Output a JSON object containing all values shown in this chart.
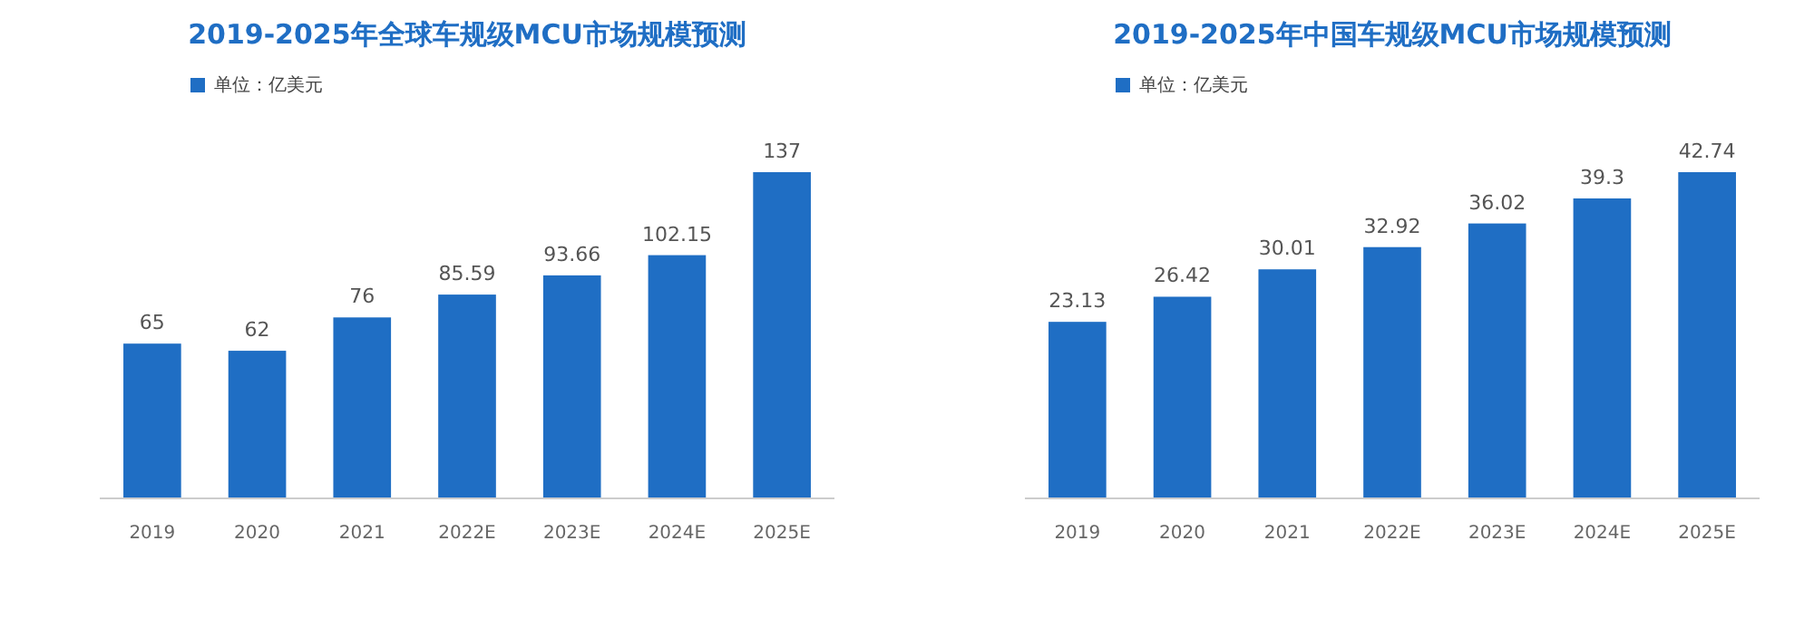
{
  "chart_data": [
    {
      "type": "bar",
      "title": "2019-2025年全球车规级MCU市场规模预测",
      "categories": [
        "2019",
        "2020",
        "2021",
        "2022E",
        "2023E",
        "2024E",
        "2025E"
      ],
      "series": [
        {
          "name": "单位：亿美元",
          "color": "#1f6ec4",
          "values": [
            65,
            62,
            76,
            85.59,
            93.66,
            102.15,
            137
          ]
        }
      ],
      "data_labels": true,
      "legend": "top left"
    },
    {
      "type": "bar",
      "title": "2019-2025年中国车规级MCU市场规模预测",
      "categories": [
        "2019",
        "2020",
        "2021",
        "2022E",
        "2023E",
        "2024E",
        "2025E"
      ],
      "series": [
        {
          "name": "单位：亿美元",
          "color": "#1f6ec4",
          "values": [
            23.13,
            26.42,
            30.01,
            32.92,
            36.02,
            39.3,
            42.74
          ]
        }
      ],
      "data_labels": true,
      "legend": "top left"
    }
  ]
}
